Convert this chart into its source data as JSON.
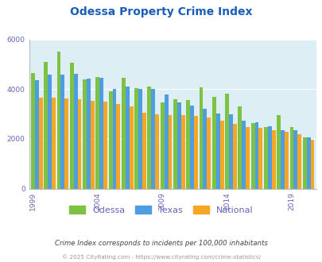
{
  "title": "Odessa Property Crime Index",
  "years": [
    1999,
    2000,
    2001,
    2002,
    2003,
    2004,
    2005,
    2006,
    2007,
    2008,
    2009,
    2010,
    2011,
    2012,
    2013,
    2014,
    2015,
    2016,
    2017,
    2018,
    2019,
    2020
  ],
  "odessa": [
    4650,
    5100,
    5520,
    5050,
    4400,
    4470,
    3900,
    4450,
    4050,
    4100,
    3450,
    3580,
    3560,
    4060,
    3700,
    3830,
    3320,
    2630,
    2480,
    2940,
    2460,
    2060
  ],
  "texas": [
    4350,
    4580,
    4590,
    4600,
    4420,
    4450,
    4000,
    4100,
    4000,
    4000,
    3790,
    3450,
    3340,
    3210,
    3020,
    2990,
    2720,
    2670,
    2520,
    2340,
    2350,
    2060
  ],
  "national": [
    3650,
    3650,
    3620,
    3580,
    3530,
    3510,
    3390,
    3310,
    3060,
    2990,
    2950,
    2950,
    2910,
    2860,
    2740,
    2590,
    2490,
    2450,
    2360,
    2280,
    2200,
    1960
  ],
  "odessa_color": "#7dc242",
  "texas_color": "#4d9de0",
  "national_color": "#f5a623",
  "bg_color": "#deeef5",
  "ylim": [
    0,
    6000
  ],
  "yticks": [
    0,
    2000,
    4000,
    6000
  ],
  "title_color": "#1a5eb8",
  "title_fontsize": 10,
  "tick_label_color": "#6666bb",
  "subtitle": "Crime Index corresponds to incidents per 100,000 inhabitants",
  "footer": "© 2025 CityRating.com - https://www.cityrating.com/crime-statistics/",
  "legend_labels": [
    "Odessa",
    "Texas",
    "National"
  ]
}
